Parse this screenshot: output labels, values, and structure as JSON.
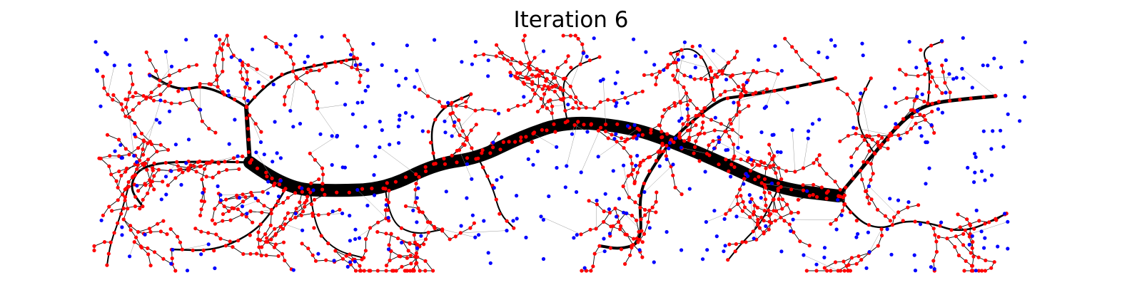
{
  "title": "Iteration 6",
  "colors": {
    "tip_node": "#ff0000",
    "leaf_node": "#0000ff",
    "edge": "#000000",
    "thin_edge": "#9a9a9a",
    "background": "#ffffff"
  }
}
